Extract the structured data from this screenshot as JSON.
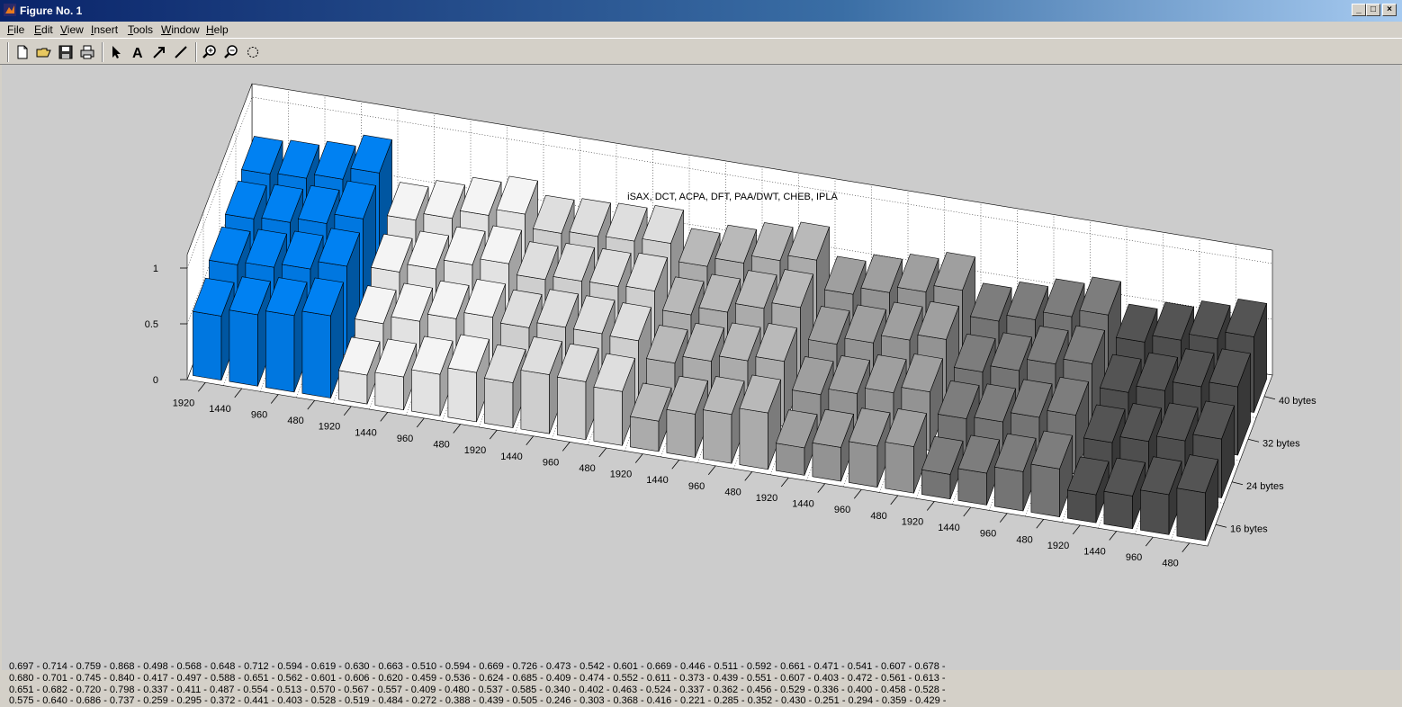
{
  "window": {
    "title": "Figure No. 1"
  },
  "menu": [
    {
      "label": "File",
      "key": "F",
      "rest": "ile"
    },
    {
      "label": "Edit",
      "key": "E",
      "rest": "dit"
    },
    {
      "label": "View",
      "key": "V",
      "rest": "iew"
    },
    {
      "label": "Insert",
      "key": "I",
      "rest": "nsert"
    },
    {
      "label": "Tools",
      "key": "T",
      "rest": "ools"
    },
    {
      "label": "Window",
      "key": "W",
      "rest": "indow"
    },
    {
      "label": "Help",
      "key": "H",
      "rest": "elp"
    }
  ],
  "toolbar": {
    "icons": [
      "new-file-icon",
      "open-folder-icon",
      "save-icon",
      "print-icon",
      "pointer-icon",
      "text-icon",
      "arrow-icon",
      "line-icon",
      "zoom-in-icon",
      "zoom-out-icon",
      "rotate-icon"
    ]
  },
  "colors": {
    "highlight": "#0077e0",
    "groups": [
      "#e2e2e2",
      "#cecece",
      "#ababab",
      "#939393",
      "#747474",
      "#4e4e4e"
    ]
  },
  "chart_data": {
    "type": "bar3d",
    "title": "iSAX, DCT, ACPA, DFT, PAA/DWT, CHEB, IPLA",
    "zlim": [
      0,
      1
    ],
    "ztick_labels": [
      "0",
      "0.5",
      "1"
    ],
    "x_tick_labels": [
      "1920",
      "1440",
      "960",
      "480",
      "1920",
      "1440",
      "960",
      "480",
      "1920",
      "1440",
      "960",
      "480",
      "1920",
      "1440",
      "960",
      "480",
      "1920",
      "1440",
      "960",
      "480",
      "1920",
      "1440",
      "960",
      "480",
      "1920",
      "1440",
      "960",
      "480"
    ],
    "y_tick_labels": [
      "16 bytes",
      "24 bytes",
      "32 bytes",
      "40 bytes"
    ],
    "rows": [
      {
        "name": "16 bytes",
        "values": [
          0.575,
          0.64,
          0.686,
          0.737,
          0.259,
          0.295,
          0.372,
          0.441,
          0.403,
          0.528,
          0.519,
          0.484,
          0.272,
          0.388,
          0.439,
          0.505,
          0.246,
          0.303,
          0.368,
          0.416,
          0.221,
          0.285,
          0.352,
          0.43,
          0.251,
          0.294,
          0.359,
          0.429
        ]
      },
      {
        "name": "24 bytes",
        "values": [
          0.651,
          0.682,
          0.72,
          0.798,
          0.337,
          0.411,
          0.487,
          0.554,
          0.513,
          0.57,
          0.567,
          0.557,
          0.409,
          0.48,
          0.537,
          0.585,
          0.34,
          0.402,
          0.463,
          0.524,
          0.337,
          0.362,
          0.456,
          0.529,
          0.336,
          0.4,
          0.458,
          0.528
        ]
      },
      {
        "name": "32 bytes",
        "values": [
          0.68,
          0.701,
          0.745,
          0.84,
          0.417,
          0.497,
          0.588,
          0.651,
          0.562,
          0.601,
          0.606,
          0.62,
          0.459,
          0.536,
          0.624,
          0.685,
          0.409,
          0.474,
          0.552,
          0.611,
          0.373,
          0.439,
          0.551,
          0.607,
          0.403,
          0.472,
          0.561,
          0.613
        ]
      },
      {
        "name": "40 bytes",
        "values": [
          0.697,
          0.714,
          0.759,
          0.868,
          0.498,
          0.568,
          0.648,
          0.712,
          0.594,
          0.619,
          0.63,
          0.663,
          0.51,
          0.594,
          0.669,
          0.726,
          0.473,
          0.542,
          0.601,
          0.669,
          0.446,
          0.511,
          0.592,
          0.661,
          0.471,
          0.541,
          0.607,
          0.678
        ]
      }
    ],
    "value_lines": [
      "0.697 - 0.714 - 0.759 - 0.868 - 0.498 - 0.568 - 0.648 - 0.712 - 0.594 - 0.619 - 0.630 - 0.663 - 0.510 - 0.594 - 0.669 - 0.726 - 0.473 - 0.542 - 0.601 - 0.669 - 0.446 - 0.511 - 0.592 - 0.661 - 0.471 - 0.541 - 0.607 - 0.678 -",
      "0.680 - 0.701 - 0.745 - 0.840 - 0.417 - 0.497 - 0.588 - 0.651 - 0.562 - 0.601 - 0.606 - 0.620 - 0.459 - 0.536 - 0.624 - 0.685 - 0.409 - 0.474 - 0.552 - 0.611 - 0.373 - 0.439 - 0.551 - 0.607 - 0.403 - 0.472 - 0.561 - 0.613 -",
      "0.651 - 0.682 - 0.720 - 0.798 - 0.337 - 0.411 - 0.487 - 0.554 - 0.513 - 0.570 - 0.567 - 0.557 - 0.409 - 0.480 - 0.537 - 0.585 - 0.340 - 0.402 - 0.463 - 0.524 - 0.337 - 0.362 - 0.456 - 0.529 - 0.336 - 0.400 - 0.458 - 0.528 -",
      "0.575 - 0.640 - 0.686 - 0.737 - 0.259 - 0.295 - 0.372 - 0.441 - 0.403 - 0.528 - 0.519 - 0.484 - 0.272 - 0.388 - 0.439 - 0.505 - 0.246 - 0.303 - 0.368 - 0.416 - 0.221 - 0.285 - 0.352 - 0.430 - 0.251 - 0.294 - 0.359 - 0.429 -"
    ]
  }
}
